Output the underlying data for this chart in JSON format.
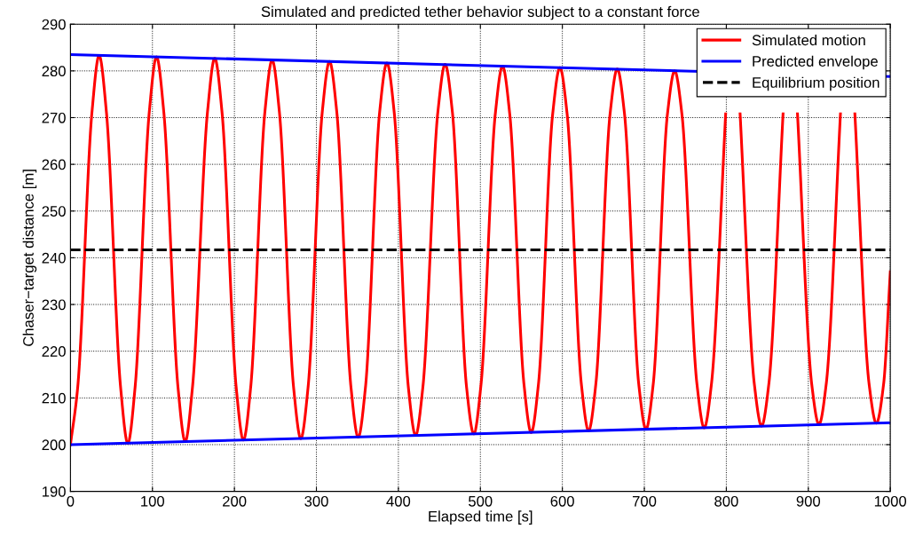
{
  "chart_data": {
    "type": "line",
    "title": "Simulated and predicted tether behavior subject to a constant force",
    "xlabel": "Elapsed time [s]",
    "ylabel": "Chaser−target distance [m]",
    "xlim": [
      0,
      1000
    ],
    "ylim": [
      190,
      290
    ],
    "xticks": [
      0,
      100,
      200,
      300,
      400,
      500,
      600,
      700,
      800,
      900,
      1000
    ],
    "yticks": [
      190,
      200,
      210,
      220,
      230,
      240,
      250,
      260,
      270,
      280,
      290
    ],
    "grid": true,
    "legend": "top right",
    "marker": "none",
    "series": [
      {
        "name": "Simulated motion",
        "color": "#ff0000",
        "line_style": "solid",
        "x": [
          0,
          8.8,
          26.3,
          35,
          43.8,
          61.2,
          70,
          78.8,
          96.2,
          105,
          113.8,
          131.2,
          140,
          148.8,
          167.2,
          176,
          184.8,
          202.2,
          211,
          219.8,
          237.2,
          246,
          254.8,
          272.2,
          281,
          289.8,
          307.2,
          316,
          324.8,
          342.2,
          351,
          359.8,
          377.2,
          386,
          394.8,
          412.2,
          421,
          429.8,
          448.2,
          457,
          465.8,
          483.2,
          492,
          500.8,
          518.2,
          527,
          535.8,
          553.2,
          562,
          570.8,
          588.2,
          597,
          605.8,
          623.2,
          632,
          640.8,
          658.2,
          667,
          675.8,
          693.2,
          702,
          710.8,
          728.2,
          737,
          745.8,
          764.2,
          773,
          781.8,
          799.2,
          808,
          816.8,
          834.2,
          843,
          851.8,
          869.2,
          878,
          886.8,
          904.2,
          913,
          921.8,
          939.2,
          948,
          956.8,
          974.2,
          983,
          991.8,
          1000
        ],
        "values": [
          200.0,
          212.2,
          271.3,
          283.3,
          271.3,
          212.2,
          200.3,
          212.2,
          271.3,
          283.0,
          271.3,
          212.2,
          200.7,
          212.2,
          271.3,
          282.7,
          271.3,
          212.2,
          201.0,
          212.2,
          271.3,
          282.3,
          271.3,
          212.2,
          201.3,
          212.2,
          271.3,
          282.0,
          271.3,
          212.2,
          201.6,
          212.2,
          271.3,
          281.7,
          271.3,
          212.2,
          202.0,
          212.2,
          271.3,
          281.4,
          271.3,
          212.2,
          202.3,
          212.9,
          270.8,
          281.0,
          270.8,
          212.9,
          202.6,
          212.9,
          270.8,
          280.7,
          270.8,
          212.9,
          203.0,
          212.9,
          270.8,
          280.4,
          270.8,
          212.9,
          203.3,
          212.9,
          270.8,
          280.0,
          270.8,
          212.9,
          203.6,
          212.9,
          270.8,
          null,
          270.8,
          212.9,
          204.0,
          212.9,
          270.8,
          null,
          270.8,
          212.9,
          204.3,
          212.9,
          270.8,
          null,
          270.8,
          212.9,
          204.6,
          212.9,
          237.0
        ]
      },
      {
        "name": "Predicted envelope",
        "color": "#0000ff",
        "line_style": "solid",
        "x": [
          0,
          1000
        ],
        "values": [
          283.5,
          278.8
        ]
      },
      {
        "color": "#0000ff",
        "line_style": "solid",
        "x": [
          0,
          1000
        ],
        "values": [
          200.0,
          204.7
        ]
      },
      {
        "name": "Equilibrium position",
        "color": "#000000",
        "line_style": "dashed",
        "x": [
          0,
          1000
        ],
        "values": [
          241.7,
          241.7
        ]
      }
    ]
  }
}
